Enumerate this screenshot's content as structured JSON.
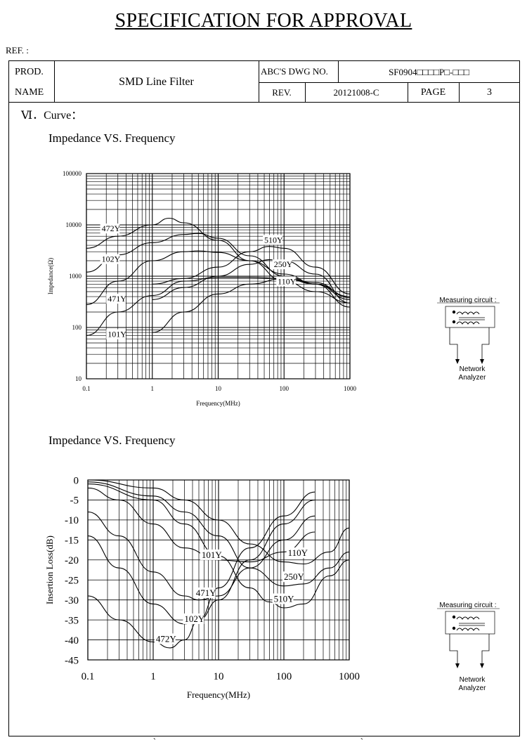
{
  "document": {
    "title": "SPECIFICATION FOR APPROVAL",
    "ref_label": "REF. :",
    "bottom_fragments": [
      "、",
      "、"
    ]
  },
  "header": {
    "prod_label": "PROD.",
    "name_label": "NAME",
    "product_name": "SMD Line Filter",
    "dwg_label": "ABC'S DWG NO.",
    "dwg_value": "SF0904□□□□P□-□□□",
    "rev_label": "REV.",
    "rev_value": "20121008-C",
    "page_label": "PAGE",
    "page_value": "3"
  },
  "section": {
    "heading": "Ⅵ．Curve："
  },
  "measuring": {
    "label": "Measuring circuit :",
    "network": "Network",
    "analyzer": "Analyzer"
  },
  "chart_data": [
    {
      "type": "line",
      "title": "Impedance VS. Frequency",
      "xlabel": "Frequency(MHz)",
      "ylabel": "Impedance(Ω)",
      "x_scale": "log",
      "y_scale": "log",
      "xlim": [
        0.1,
        1000
      ],
      "ylim": [
        10,
        100000
      ],
      "x_ticks": [
        "0.1",
        "1",
        "10",
        "100",
        "1000"
      ],
      "y_ticks": [
        "100000",
        "10000",
        "1000",
        "100",
        "10"
      ],
      "grid": true,
      "series": [
        {
          "name": "472Y",
          "points": [
            [
              0.1,
              3500
            ],
            [
              0.3,
              6000
            ],
            [
              1,
              10000
            ],
            [
              1.8,
              13500
            ],
            [
              3,
              11000
            ],
            [
              10,
              5000
            ],
            [
              30,
              2000
            ],
            [
              100,
              800
            ],
            [
              300,
              500
            ],
            [
              1000,
              300
            ]
          ]
        },
        {
          "name": "102Y",
          "points": [
            [
              0.1,
              1200
            ],
            [
              0.3,
              2600
            ],
            [
              1,
              4500
            ],
            [
              3,
              6500
            ],
            [
              5,
              6800
            ],
            [
              10,
              5500
            ],
            [
              30,
              2500
            ],
            [
              100,
              1000
            ],
            [
              300,
              700
            ],
            [
              1000,
              400
            ]
          ]
        },
        {
          "name": "471Y",
          "points": [
            [
              0.1,
              280
            ],
            [
              0.3,
              800
            ],
            [
              1,
              2000
            ],
            [
              3,
              3000
            ],
            [
              5,
              3100
            ],
            [
              10,
              2900
            ],
            [
              30,
              2000
            ],
            [
              100,
              1100
            ],
            [
              300,
              700
            ],
            [
              1000,
              350
            ]
          ]
        },
        {
          "name": "101Y",
          "points": [
            [
              0.1,
              70
            ],
            [
              0.3,
              200
            ],
            [
              1,
              420
            ],
            [
              3,
              800
            ],
            [
              10,
              950
            ],
            [
              30,
              950
            ],
            [
              100,
              900
            ],
            [
              300,
              750
            ],
            [
              1000,
              380
            ]
          ]
        },
        {
          "name": "510Y",
          "points": [
            [
              1,
              700
            ],
            [
              3,
              900
            ],
            [
              10,
              1500
            ],
            [
              30,
              3000
            ],
            [
              60,
              3800
            ],
            [
              100,
              3500
            ],
            [
              300,
              1500
            ],
            [
              1000,
              450
            ]
          ]
        },
        {
          "name": "250Y",
          "points": [
            [
              1,
              350
            ],
            [
              3,
              600
            ],
            [
              10,
              1000
            ],
            [
              30,
              1700
            ],
            [
              60,
              2100
            ],
            [
              100,
              2000
            ],
            [
              300,
              1100
            ],
            [
              1000,
              300
            ]
          ]
        },
        {
          "name": "110Y",
          "points": [
            [
              1,
              80
            ],
            [
              3,
              200
            ],
            [
              10,
              450
            ],
            [
              30,
              700
            ],
            [
              100,
              900
            ],
            [
              300,
              700
            ],
            [
              1000,
              250
            ]
          ]
        }
      ]
    },
    {
      "type": "line",
      "title": "Impedance VS. Frequency",
      "xlabel": "Frequency(MHz)",
      "ylabel": "Insertion Loss(dB)",
      "x_scale": "log",
      "xlim": [
        0.1,
        1000
      ],
      "ylim": [
        -45,
        0
      ],
      "x_ticks": [
        "0.1",
        "1",
        "10",
        "100",
        "1000"
      ],
      "y_ticks": [
        "0",
        "-5",
        "-10",
        "-15",
        "-20",
        "-25",
        "-30",
        "-35",
        "-40",
        "-45"
      ],
      "grid": true,
      "series": [
        {
          "name": "472Y",
          "points": [
            [
              0.1,
              -29
            ],
            [
              0.3,
              -35
            ],
            [
              1,
              -40.5
            ],
            [
              1.8,
              -42
            ],
            [
              3,
              -40
            ],
            [
              5,
              -35
            ],
            [
              10,
              -27
            ],
            [
              30,
              -17
            ],
            [
              100,
              -9
            ],
            [
              300,
              -3
            ]
          ]
        },
        {
          "name": "102Y",
          "points": [
            [
              0.1,
              -14
            ],
            [
              0.3,
              -22
            ],
            [
              1,
              -31
            ],
            [
              3,
              -36
            ],
            [
              5,
              -35
            ],
            [
              10,
              -30
            ],
            [
              30,
              -20
            ],
            [
              100,
              -11
            ],
            [
              300,
              -5
            ]
          ]
        },
        {
          "name": "471Y",
          "points": [
            [
              0.1,
              -8
            ],
            [
              0.3,
              -14
            ],
            [
              1,
              -23
            ],
            [
              3,
              -29
            ],
            [
              5,
              -30
            ],
            [
              10,
              -29
            ],
            [
              30,
              -22
            ],
            [
              100,
              -15
            ],
            [
              300,
              -9
            ]
          ]
        },
        {
          "name": "101Y",
          "points": [
            [
              0.1,
              -2
            ],
            [
              0.3,
              -5
            ],
            [
              1,
              -11
            ],
            [
              3,
              -17
            ],
            [
              10,
              -20
            ],
            [
              30,
              -20.5
            ],
            [
              100,
              -18
            ],
            [
              300,
              -13
            ]
          ]
        },
        {
          "name": "510Y",
          "points": [
            [
              0.1,
              -1
            ],
            [
              1,
              -5
            ],
            [
              3,
              -11
            ],
            [
              10,
              -19
            ],
            [
              30,
              -27
            ],
            [
              60,
              -30.5
            ],
            [
              100,
              -32
            ],
            [
              200,
              -31
            ],
            [
              500,
              -24
            ],
            [
              1000,
              -20
            ]
          ]
        },
        {
          "name": "250Y",
          "points": [
            [
              0.1,
              -0.5
            ],
            [
              1,
              -4
            ],
            [
              3,
              -8
            ],
            [
              10,
              -14
            ],
            [
              30,
              -22
            ],
            [
              100,
              -26.5
            ],
            [
              200,
              -26
            ],
            [
              500,
              -22
            ],
            [
              1000,
              -18
            ]
          ]
        },
        {
          "name": "110Y",
          "points": [
            [
              0.1,
              0
            ],
            [
              1,
              -2
            ],
            [
              3,
              -5
            ],
            [
              10,
              -10
            ],
            [
              30,
              -16
            ],
            [
              100,
              -20.5
            ],
            [
              200,
              -21
            ],
            [
              500,
              -18
            ],
            [
              1000,
              -12
            ]
          ]
        }
      ]
    }
  ]
}
